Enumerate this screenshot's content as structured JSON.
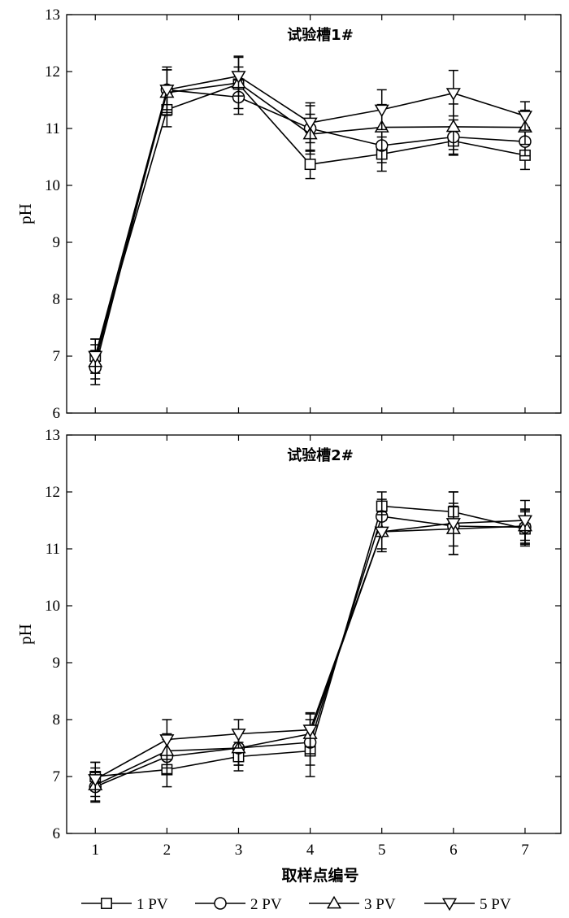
{
  "chart_data": [
    {
      "type": "line",
      "title": "试验槽1#",
      "xlabel": "",
      "ylabel": "pH",
      "x": [
        1,
        2,
        3,
        4,
        5,
        6,
        7
      ],
      "xlim": [
        0.6,
        7.5
      ],
      "ylim": [
        6,
        13
      ],
      "yticks": [
        6,
        7,
        8,
        9,
        10,
        11,
        12,
        13
      ],
      "series": [
        {
          "name": "1 PV",
          "marker": "square",
          "values": [
            7.0,
            11.33,
            11.78,
            10.37,
            10.55,
            10.78,
            10.53
          ],
          "errors": [
            0.3,
            0.3,
            0.3,
            0.25,
            0.3,
            0.25,
            0.25
          ]
        },
        {
          "name": "2 PV",
          "marker": "circle",
          "values": [
            6.8,
            11.68,
            11.55,
            11.0,
            10.7,
            10.85,
            10.77
          ],
          "errors": [
            0.3,
            0.35,
            0.3,
            0.4,
            0.3,
            0.3,
            0.25
          ]
        },
        {
          "name": "3 PV",
          "marker": "triangle-up",
          "values": [
            6.9,
            11.63,
            11.8,
            10.9,
            11.02,
            11.03,
            11.02
          ],
          "errors": [
            0.3,
            0.4,
            0.45,
            0.35,
            0.4,
            0.4,
            0.3
          ]
        },
        {
          "name": "5 PV",
          "marker": "triangle-down",
          "values": [
            7.0,
            11.68,
            11.92,
            11.1,
            11.33,
            11.62,
            11.22
          ],
          "errors": [
            0.3,
            0.4,
            0.35,
            0.35,
            0.35,
            0.4,
            0.25
          ]
        }
      ]
    },
    {
      "type": "line",
      "title": "试验槽2#",
      "xlabel": "取样点编号",
      "ylabel": "pH",
      "x": [
        1,
        2,
        3,
        4,
        5,
        6,
        7
      ],
      "xlim": [
        0.6,
        7.5
      ],
      "ylim": [
        6,
        13
      ],
      "yticks": [
        6,
        7,
        8,
        9,
        10,
        11,
        12,
        13
      ],
      "xticks": [
        1,
        2,
        3,
        4,
        5,
        6,
        7
      ],
      "series": [
        {
          "name": "1 PV",
          "marker": "square",
          "values": [
            7.0,
            7.12,
            7.35,
            7.45,
            11.75,
            11.65,
            11.35
          ],
          "errors": [
            0.25,
            0.3,
            0.25,
            0.45,
            0.25,
            0.35,
            0.3
          ]
        },
        {
          "name": "2 PV",
          "marker": "circle",
          "values": [
            6.82,
            7.35,
            7.5,
            7.6,
            11.57,
            11.4,
            11.38
          ],
          "errors": [
            0.25,
            0.3,
            0.3,
            0.4,
            0.3,
            0.35,
            0.3
          ]
        },
        {
          "name": "3 PV",
          "marker": "triangle-up",
          "values": [
            6.85,
            7.45,
            7.5,
            7.75,
            11.3,
            11.35,
            11.4
          ],
          "errors": [
            0.3,
            0.3,
            0.3,
            0.35,
            0.3,
            0.45,
            0.3
          ]
        },
        {
          "name": "5 PV",
          "marker": "triangle-down",
          "values": [
            6.95,
            7.65,
            7.75,
            7.82,
            11.3,
            11.45,
            11.5
          ],
          "errors": [
            0.3,
            0.35,
            0.25,
            0.3,
            0.35,
            0.55,
            0.35
          ]
        }
      ]
    }
  ],
  "legend": {
    "placement": "bottom",
    "items": [
      {
        "label": "1 PV",
        "marker": "square"
      },
      {
        "label": "2 PV",
        "marker": "circle"
      },
      {
        "label": "3 PV",
        "marker": "triangle-up"
      },
      {
        "label": "5 PV",
        "marker": "triangle-down"
      }
    ]
  }
}
